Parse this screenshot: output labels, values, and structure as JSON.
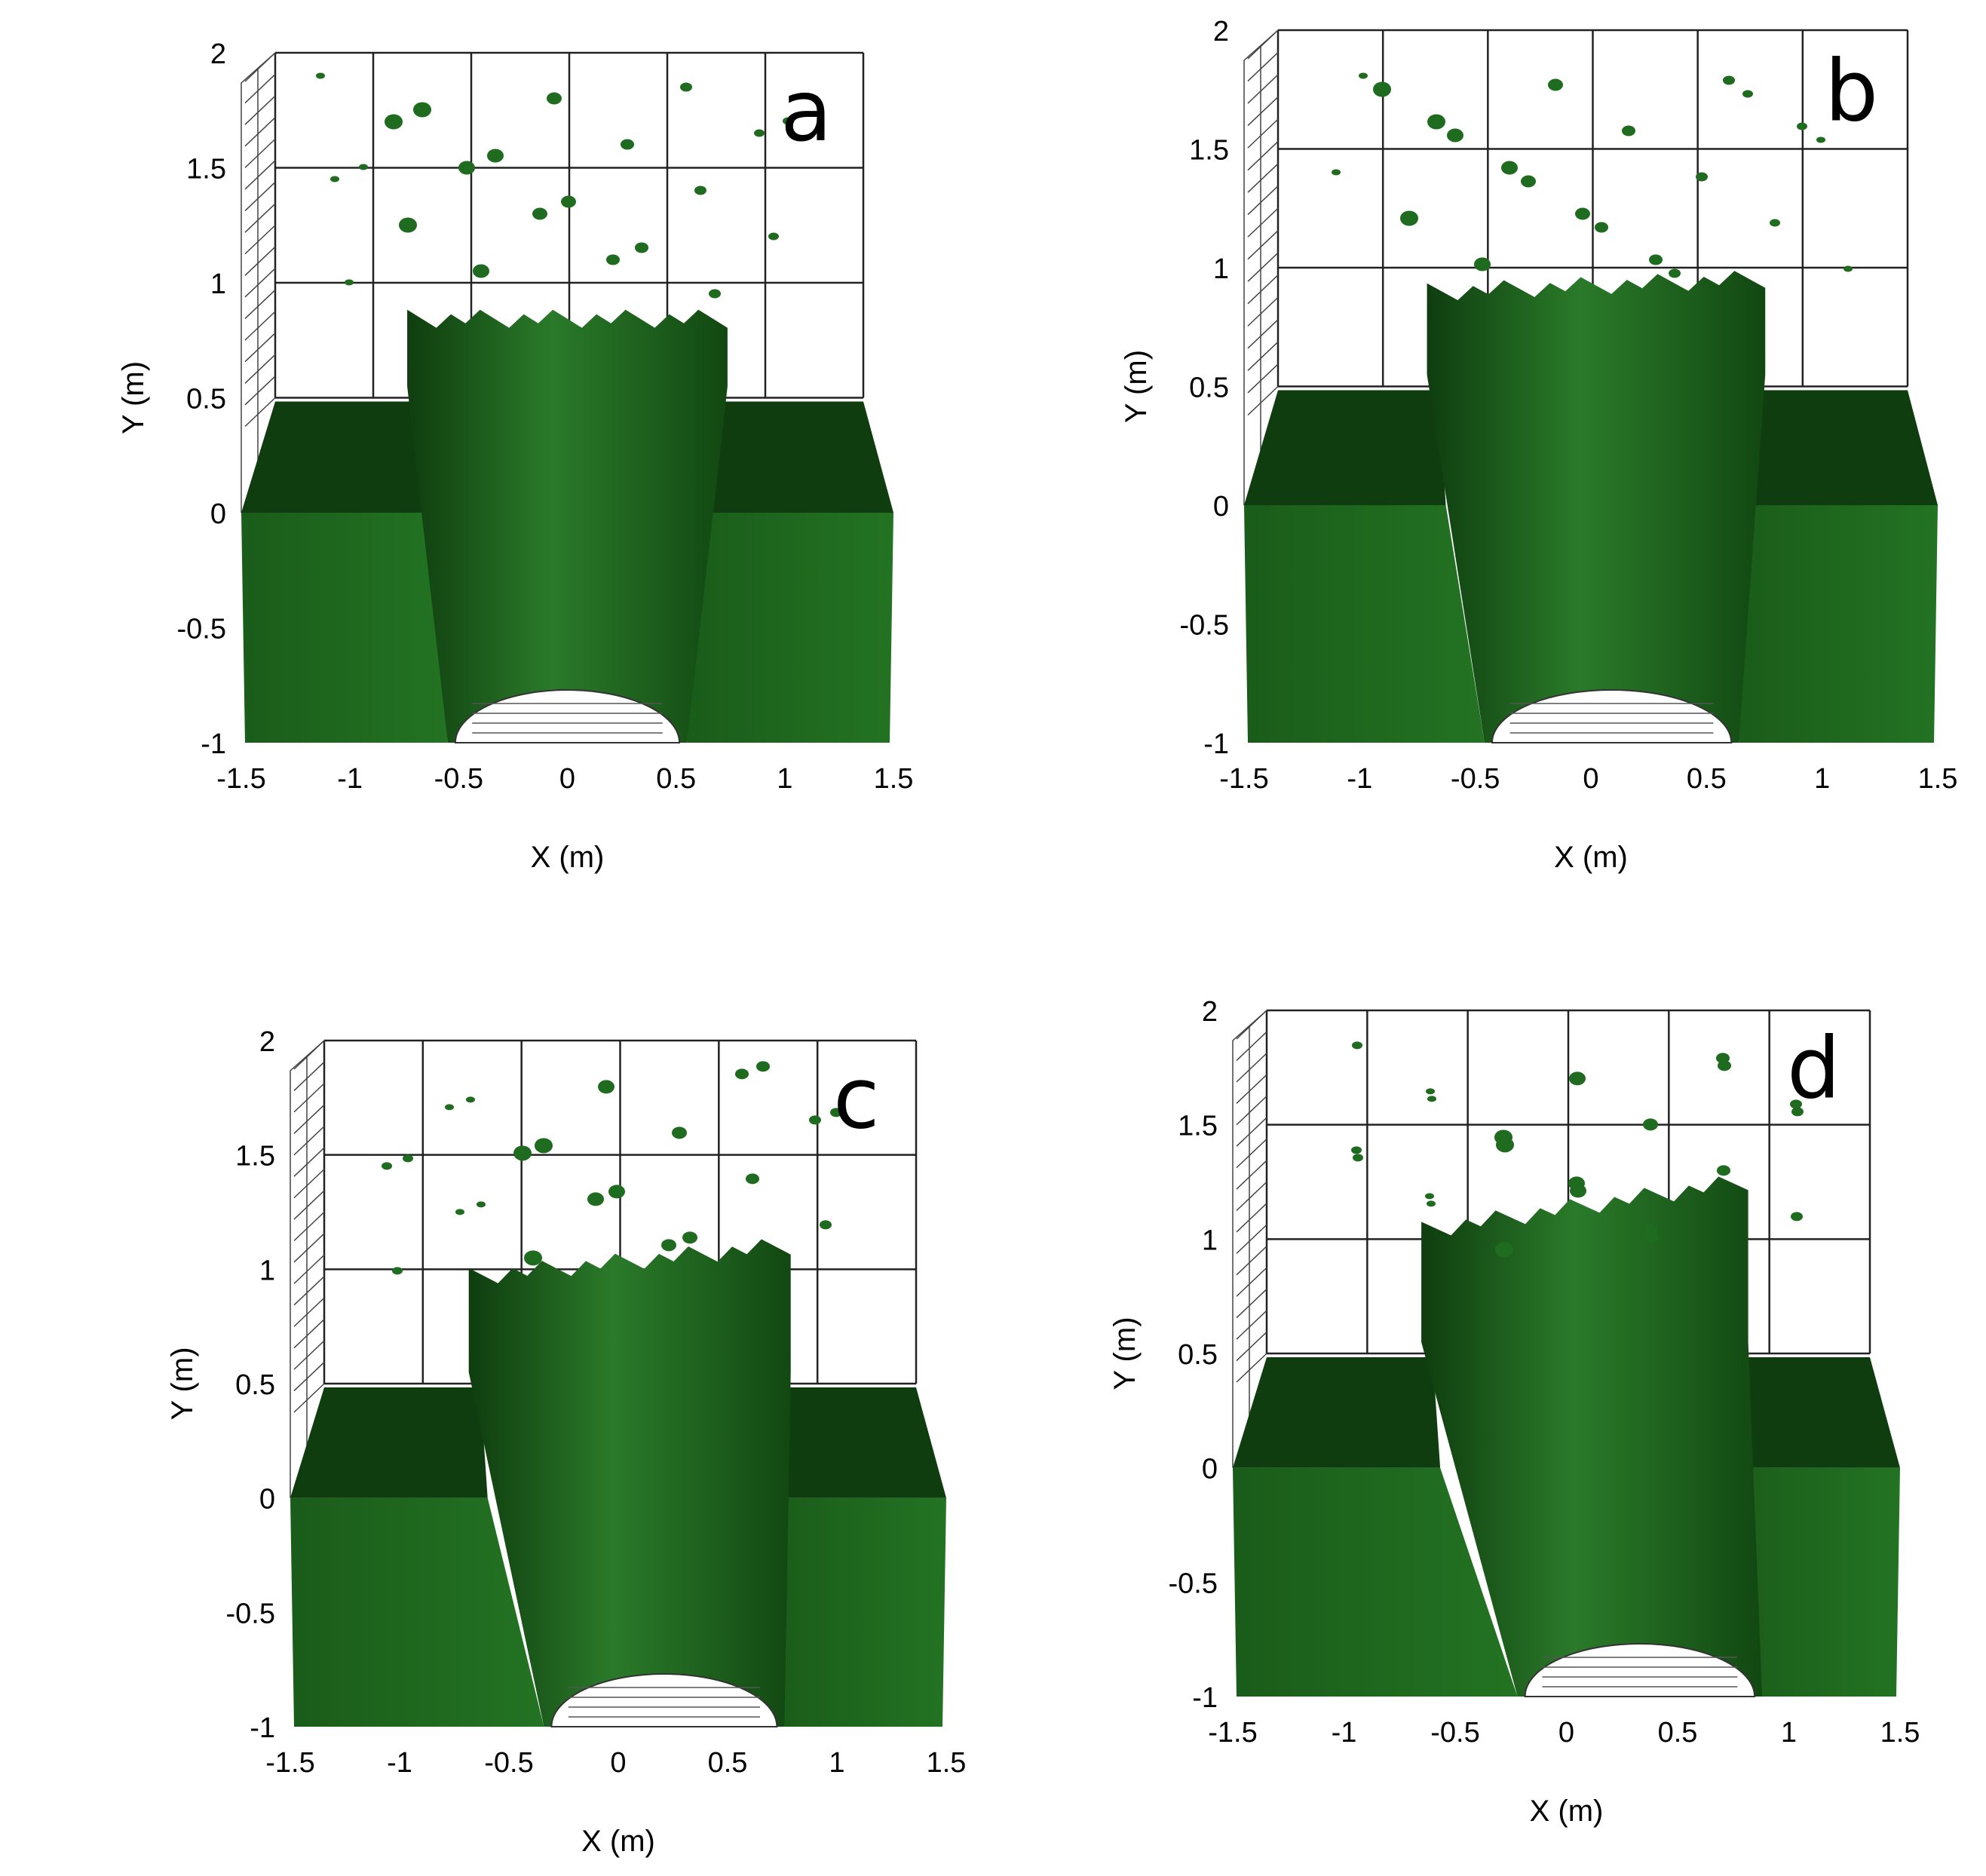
{
  "figure": {
    "panels": [
      {
        "id": "a",
        "label": "a"
      },
      {
        "id": "b",
        "label": "b"
      },
      {
        "id": "c",
        "label": "c"
      },
      {
        "id": "d",
        "label": "d"
      }
    ],
    "x_axis_label": "X (m)",
    "y_axis_label": "Y (m)",
    "x_ticks": [
      "-1.5",
      "-1",
      "-0.5",
      "0",
      "0.5",
      "1",
      "1.5"
    ],
    "y_ticks": [
      "2",
      "1.5",
      "1",
      "0.5",
      "0",
      "-0.5",
      "-1"
    ]
  },
  "colors": {
    "water": "#1f6b1f",
    "water_dark": "#0f3d0f",
    "water_top": "#164f16",
    "grid": "#222222"
  }
}
